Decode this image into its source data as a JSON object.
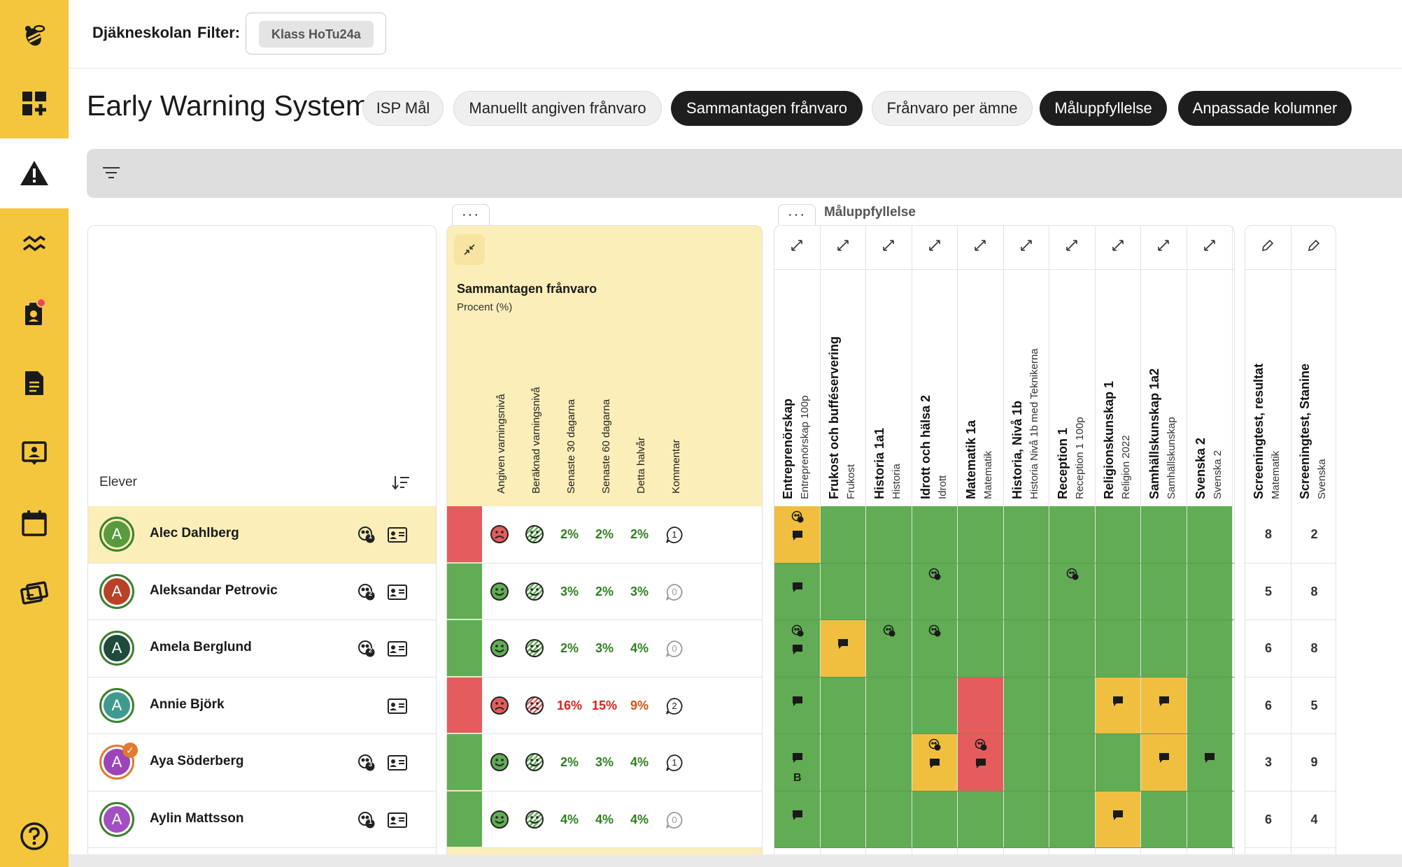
{
  "header": {
    "school": "Djäkneskolan",
    "filter_label": "Filter:",
    "filter_chip": "Klass HoTu24a"
  },
  "page": {
    "title": "Early Warning System",
    "tabs": [
      {
        "label": "ISP Mål",
        "active": false
      },
      {
        "label": "Manuellt angiven frånvaro",
        "active": false
      },
      {
        "label": "Sammantagen frånvaro",
        "active": true
      },
      {
        "label": "Frånvaro per ämne",
        "active": false
      },
      {
        "label": "Måluppfyllelse",
        "active": true
      },
      {
        "label": "Anpassade kolumner",
        "active": true
      }
    ]
  },
  "sidebar": {
    "items": [
      "bee-logo-icon",
      "dashboard-add-icon",
      "warning-icon",
      "trend-icon",
      "student-badge-icon",
      "document-icon",
      "contact-card-icon",
      "calendar-icon",
      "tickets-icon",
      "help-icon"
    ]
  },
  "table": {
    "students_header": "Elever",
    "more_label": "···",
    "absence": {
      "title": "Sammantagen frånvaro",
      "subtitle": "Procent (%)",
      "columns": [
        "Angiven varningsnivå",
        "Beräknad varningsnivå",
        "Senaste 30 dagarna",
        "Senaste 60 dagarna",
        "Detta halvår",
        "Kommentar"
      ]
    },
    "goal_group_title": "Måluppfyllelse",
    "subjects": [
      {
        "name": "Entreprenörskap",
        "sub": "Entreprenörskap 100p"
      },
      {
        "name": "Frukost och bufféservering",
        "sub": "Frukost"
      },
      {
        "name": "Historia 1a1",
        "sub": "Historia"
      },
      {
        "name": "Idrott och hälsa 2",
        "sub": "Idrott"
      },
      {
        "name": "Matematik 1a",
        "sub": "Matematik"
      },
      {
        "name": "Historia, Nivå 1b",
        "sub": "Historia Nivå 1b med Teknikerna"
      },
      {
        "name": "Reception 1",
        "sub": "Reception 1 100p"
      },
      {
        "name": "Religionskunskap 1",
        "sub": "Religion 2022"
      },
      {
        "name": "Samhällskunskap 1a2",
        "sub": "Samhällskunskap"
      },
      {
        "name": "Svenska 2",
        "sub": "Svenska 2"
      }
    ],
    "screening": [
      {
        "name": "Screeningtest, resultat",
        "sub": "Matematik"
      },
      {
        "name": "Screeningtest, Stanine",
        "sub": "Svenska"
      }
    ],
    "students": [
      {
        "initial": "A",
        "name": "Alec Dahlberg",
        "avatar_color": "#5a9a3e",
        "border_color": "#3c7f2e",
        "badge": "1",
        "highlight": true,
        "level_color": "#e45c5c",
        "manual_face": "sad",
        "calc_face": "happy",
        "pct": [
          "2%",
          "2%",
          "2%"
        ],
        "pct_tone": [
          "green",
          "green",
          "green"
        ],
        "comments": "1",
        "subjects": [
          "y",
          "g",
          "g",
          "g",
          "g",
          "g",
          "g",
          "g",
          "g",
          "g"
        ],
        "screening": [
          "8",
          "2"
        ]
      },
      {
        "initial": "A",
        "name": "Aleksandar Petrovic",
        "avatar_color": "#b84228",
        "border_color": "#3c7f2e",
        "badge": "2",
        "highlight": false,
        "level_color": "#61ac54",
        "manual_face": "happy",
        "calc_face": "happy",
        "pct": [
          "3%",
          "2%",
          "3%"
        ],
        "pct_tone": [
          "green",
          "green",
          "green"
        ],
        "comments": "0",
        "subjects": [
          "g",
          "g",
          "g",
          "g",
          "g",
          "g",
          "g",
          "g",
          "g",
          "g"
        ],
        "screening": [
          "5",
          "8"
        ]
      },
      {
        "initial": "A",
        "name": "Amela Berglund",
        "avatar_color": "#1f4a3c",
        "border_color": "#3c7f2e",
        "badge": "2",
        "highlight": false,
        "level_color": "#61ac54",
        "manual_face": "happy",
        "calc_face": "happy",
        "pct": [
          "2%",
          "3%",
          "4%"
        ],
        "pct_tone": [
          "green",
          "green",
          "green"
        ],
        "comments": "0",
        "subjects": [
          "g",
          "y",
          "g",
          "g",
          "g",
          "g",
          "g",
          "g",
          "g",
          "g"
        ],
        "screening": [
          "6",
          "8"
        ]
      },
      {
        "initial": "A",
        "name": "Annie Björk",
        "avatar_color": "#3e9a8e",
        "border_color": "#3c7f2e",
        "badge": "",
        "highlight": false,
        "level_color": "#e45c5c",
        "manual_face": "sad",
        "calc_face": "sad",
        "pct": [
          "16%",
          "15%",
          "9%"
        ],
        "pct_tone": [
          "red",
          "red",
          "amber"
        ],
        "comments": "2",
        "subjects": [
          "g",
          "g",
          "g",
          "g",
          "r",
          "g",
          "g",
          "y",
          "y",
          "g"
        ],
        "screening": [
          "6",
          "5"
        ]
      },
      {
        "initial": "A",
        "name": "Aya Söderberg",
        "avatar_color": "#9b45b8",
        "border_color": "#e27a2d",
        "badge": "3",
        "highlight": false,
        "level_color": "#61ac54",
        "manual_face": "happy",
        "calc_face": "happy",
        "pct": [
          "2%",
          "3%",
          "4%"
        ],
        "pct_tone": [
          "green",
          "green",
          "green"
        ],
        "comments": "1",
        "subjects": [
          "g",
          "g",
          "g",
          "y",
          "r",
          "g",
          "g",
          "g",
          "y",
          "g"
        ],
        "screening": [
          "3",
          "9"
        ],
        "grade_mark": "B"
      },
      {
        "initial": "A",
        "name": "Aylin Mattsson",
        "avatar_color": "#a34fc2",
        "border_color": "#3c7f2e",
        "badge": "1",
        "highlight": false,
        "level_color": "#61ac54",
        "manual_face": "happy",
        "calc_face": "happy",
        "pct": [
          "4%",
          "4%",
          "4%"
        ],
        "pct_tone": [
          "green",
          "green",
          "green"
        ],
        "comments": "0",
        "subjects": [
          "g",
          "g",
          "g",
          "g",
          "g",
          "g",
          "g",
          "y",
          "g",
          "g"
        ],
        "screening": [
          "6",
          "4"
        ]
      }
    ]
  }
}
